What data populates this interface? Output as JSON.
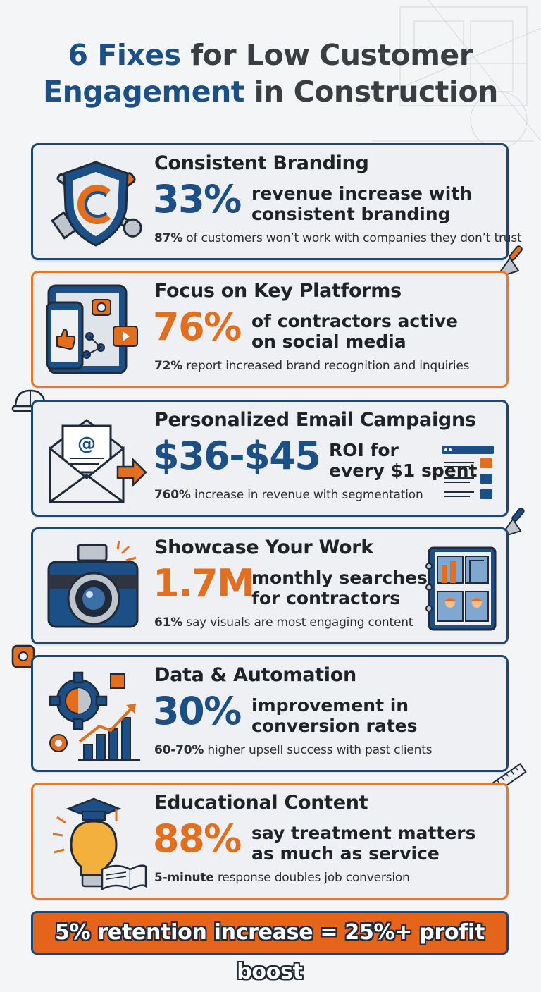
{
  "title": {
    "part1": "6 Fixes",
    "part2": " for Low Customer",
    "part3": "Engagement",
    "part4": " in Construction"
  },
  "colors": {
    "blue": "#1c4f86",
    "orange": "#e26e1f",
    "dark": "#1f2328"
  },
  "cards": [
    {
      "heading": "Consistent Branding",
      "stat": "33%",
      "stat_line1": "revenue increase with",
      "stat_line2": "consistent branding",
      "note_bold": "87%",
      "note_text": " of customers won’t work with companies they don’t trust",
      "icon": "shield-wrench-icon"
    },
    {
      "heading": "Focus on Key Platforms",
      "stat": "76%",
      "stat_line1": "of contractors active",
      "stat_line2": "on social media",
      "note_bold": "72%",
      "note_text": " report increased brand recognition and inquiries",
      "icon": "social-devices-icon"
    },
    {
      "heading": "Personalized Email Campaigns",
      "stat": "$36-$45",
      "stat_line1": "ROI for",
      "stat_line2": "every $1 spent",
      "note_bold": "760%",
      "note_text": " increase in revenue with segmentation",
      "icon": "email-envelope-icon"
    },
    {
      "heading": "Showcase Your Work",
      "stat": "1.7M",
      "stat_line1": "monthly searches",
      "stat_line2": "for contractors",
      "note_bold": "61%",
      "note_text": " say visuals are most engaging content",
      "icon": "camera-icon"
    },
    {
      "heading": "Data & Automation",
      "stat": "30%",
      "stat_line1": "improvement in",
      "stat_line2": "conversion rates",
      "note_bold": "60-70%",
      "note_text": " higher upsell success with past clients",
      "icon": "gear-chart-icon"
    },
    {
      "heading": "Educational Content",
      "stat": "88%",
      "stat_line1": "say treatment matters",
      "stat_line2": "as much as service",
      "note_bold": "5-minute",
      "note_text": " response doubles job conversion",
      "icon": "lightbulb-graduation-icon"
    }
  ],
  "footer": {
    "text": "5% retention increase = 25%+ profit boost"
  }
}
